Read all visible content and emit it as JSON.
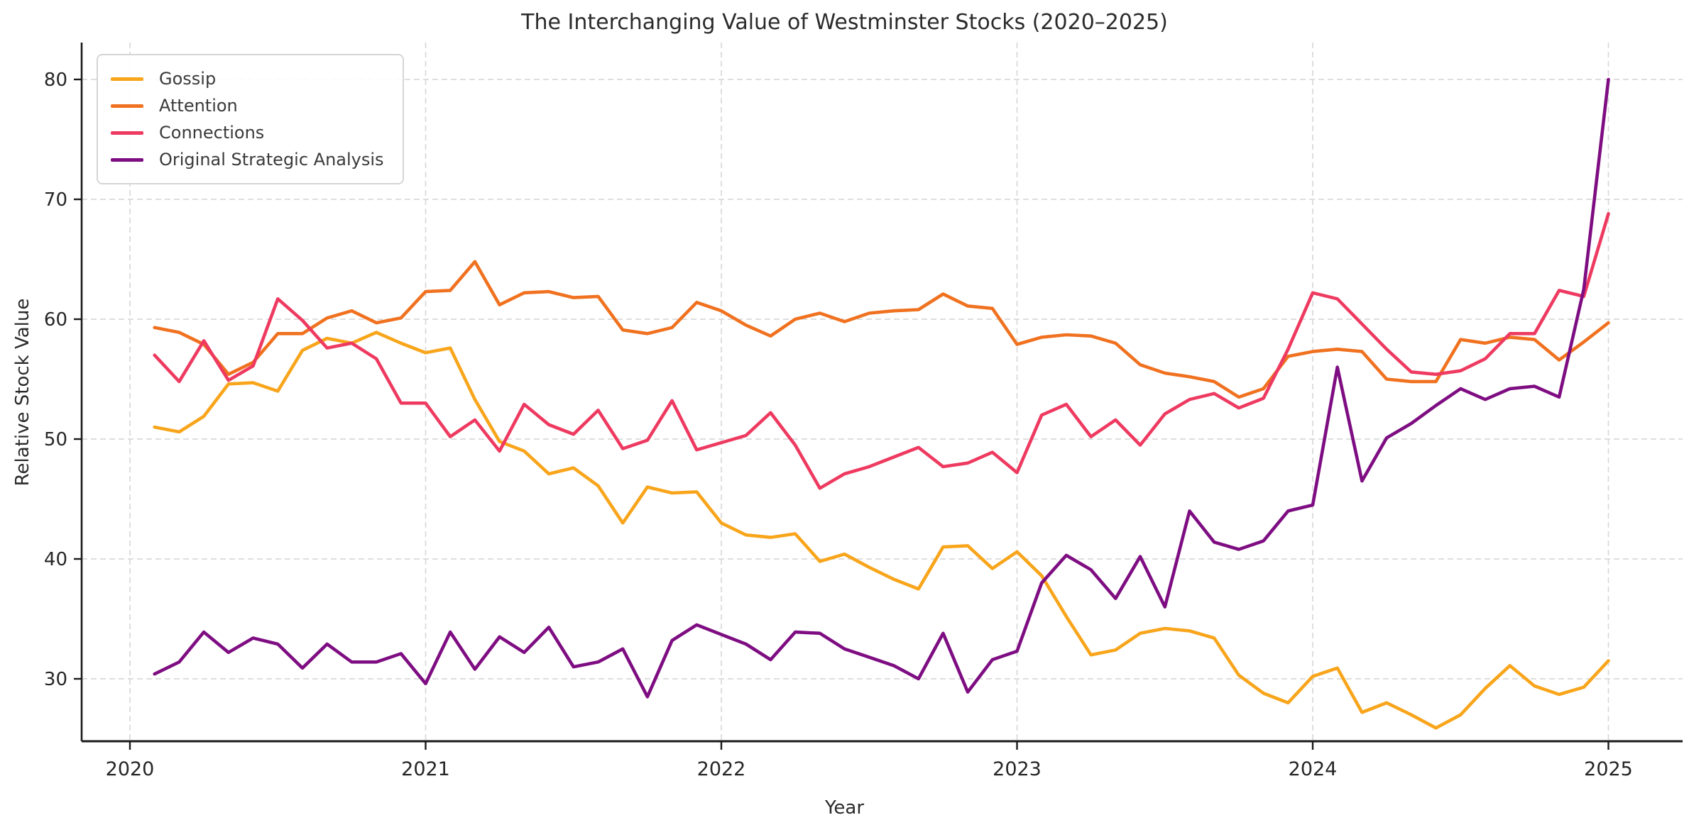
{
  "window": {
    "kind": "matplotlib-line-chart-figure"
  },
  "chart_data": {
    "type": "line",
    "title": "The Interchanging Value of Westminster Stocks (2020–2025)",
    "xlabel": "Year",
    "ylabel": "Relative Stock Value",
    "x_tick_labels": [
      "2020",
      "2021",
      "2022",
      "2023",
      "2024",
      "2025"
    ],
    "y_tick_labels": [
      "30",
      "40",
      "50",
      "60",
      "70",
      "80"
    ],
    "y_ticks": [
      30,
      40,
      50,
      60,
      70,
      80
    ],
    "ylim": [
      24.8,
      83.2
    ],
    "xlim_years": [
      2019.84,
      2025.27
    ],
    "grid": "dashed, light gray, horizontal and vertical at year ticks",
    "legend_position": "upper-left",
    "x_monthly": [
      "2020-01",
      "2020-02",
      "2020-03",
      "2020-04",
      "2020-05",
      "2020-06",
      "2020-07",
      "2020-08",
      "2020-09",
      "2020-10",
      "2020-11",
      "2020-12",
      "2021-01",
      "2021-02",
      "2021-03",
      "2021-04",
      "2021-05",
      "2021-06",
      "2021-07",
      "2021-08",
      "2021-09",
      "2021-10",
      "2021-11",
      "2021-12",
      "2022-01",
      "2022-02",
      "2022-03",
      "2022-04",
      "2022-05",
      "2022-06",
      "2022-07",
      "2022-08",
      "2022-09",
      "2022-10",
      "2022-11",
      "2022-12",
      "2023-01",
      "2023-02",
      "2023-03",
      "2023-04",
      "2023-05",
      "2023-06",
      "2023-07",
      "2023-08",
      "2023-09",
      "2023-10",
      "2023-11",
      "2023-12",
      "2024-01",
      "2024-02",
      "2024-03",
      "2024-04",
      "2024-05",
      "2024-06",
      "2024-07",
      "2024-08",
      "2024-09",
      "2024-10",
      "2024-11",
      "2024-12"
    ],
    "series": [
      {
        "name": "Gossip",
        "color": "#F8A51B",
        "values": [
          51.0,
          50.6,
          51.9,
          54.6,
          54.7,
          54.0,
          57.4,
          58.4,
          58.0,
          58.9,
          58.0,
          57.2,
          57.6,
          53.3,
          49.8,
          49.0,
          47.1,
          47.6,
          46.1,
          43.0,
          46.0,
          45.5,
          45.6,
          43.0,
          42.0,
          41.8,
          42.1,
          39.8,
          40.4,
          39.3,
          38.3,
          37.5,
          41.0,
          41.1,
          39.2,
          40.6,
          38.6,
          35.2,
          32.0,
          32.4,
          33.8,
          34.2,
          34.0,
          33.4,
          30.3,
          28.8,
          28.0,
          30.2,
          30.9,
          27.2,
          28.0,
          27.0,
          25.9,
          27.0,
          29.2,
          31.1,
          29.4,
          28.7,
          29.3,
          31.5
        ]
      },
      {
        "name": "Attention",
        "color": "#F0711F",
        "values": [
          59.3,
          58.9,
          57.9,
          55.4,
          56.4,
          58.8,
          58.8,
          60.1,
          60.7,
          59.7,
          60.1,
          62.3,
          62.4,
          64.8,
          61.2,
          62.2,
          62.3,
          61.8,
          61.9,
          59.1,
          58.8,
          59.3,
          61.4,
          60.7,
          59.5,
          58.6,
          60.0,
          60.5,
          59.8,
          60.5,
          60.7,
          60.8,
          62.1,
          61.1,
          60.9,
          57.9,
          58.5,
          58.7,
          58.6,
          58.0,
          56.2,
          55.5,
          55.2,
          54.8,
          53.5,
          54.2,
          56.9,
          57.3,
          57.5,
          57.3,
          55.0,
          54.8,
          54.8,
          58.3,
          58.0,
          58.5,
          58.3,
          56.6,
          58.1,
          59.7
        ]
      },
      {
        "name": "Connections",
        "color": "#EE3A60",
        "values": [
          57.0,
          54.8,
          58.2,
          54.9,
          56.1,
          61.7,
          59.9,
          57.6,
          58.0,
          56.7,
          53.0,
          53.0,
          50.2,
          51.6,
          49.0,
          52.9,
          51.2,
          50.4,
          52.4,
          49.2,
          49.9,
          53.2,
          49.1,
          49.7,
          50.3,
          52.2,
          49.5,
          45.9,
          47.1,
          47.7,
          48.5,
          49.3,
          47.7,
          48.0,
          48.9,
          47.2,
          52.0,
          52.9,
          50.2,
          51.6,
          49.5,
          52.1,
          53.3,
          53.8,
          52.6,
          53.4,
          57.5,
          62.2,
          61.7,
          59.6,
          57.5,
          55.6,
          55.4,
          55.7,
          56.7,
          58.8,
          58.8,
          62.4,
          61.9,
          68.8
        ]
      },
      {
        "name": "Original Strategic Analysis",
        "color": "#7E0D82",
        "values": [
          30.4,
          31.4,
          33.9,
          32.2,
          33.4,
          32.9,
          30.9,
          32.9,
          31.4,
          31.4,
          32.1,
          29.6,
          33.9,
          30.8,
          33.5,
          32.2,
          34.3,
          31.0,
          31.4,
          32.5,
          28.5,
          33.2,
          34.5,
          33.7,
          32.9,
          31.6,
          33.9,
          33.8,
          32.5,
          31.8,
          31.1,
          30.0,
          33.8,
          28.9,
          31.6,
          32.3,
          38.0,
          40.3,
          39.1,
          36.7,
          40.2,
          36.0,
          44.0,
          41.4,
          40.8,
          41.5,
          44.0,
          44.5,
          56.0,
          46.5,
          50.1,
          51.3,
          52.8,
          54.2,
          53.3,
          54.2,
          54.4,
          53.5,
          62.5,
          80.0
        ]
      }
    ],
    "style": {
      "background": "#ffffff",
      "grid_color": "#d9d9d9",
      "spine_color": "#1a1a1a",
      "tick_label_color": "#262626",
      "line_width": 4.6
    }
  }
}
